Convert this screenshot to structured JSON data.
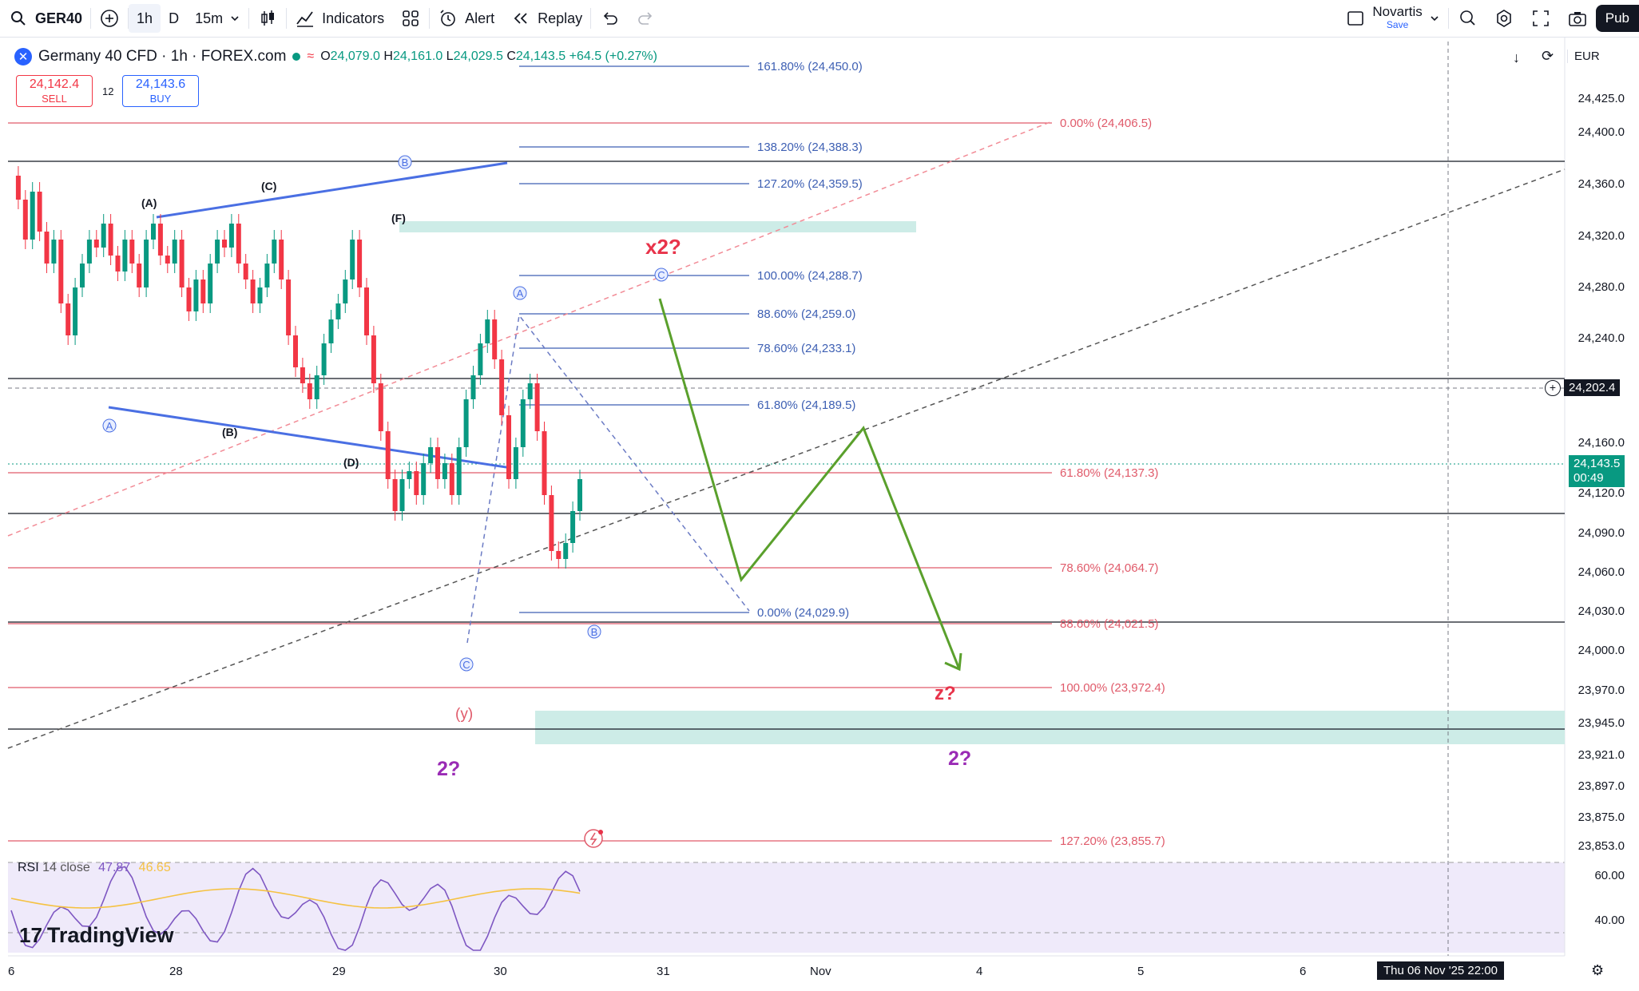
{
  "topbar": {
    "symbol": "GER40",
    "intervals": [
      "1h",
      "D",
      "15m"
    ],
    "indicators_label": "Indicators",
    "alert_label": "Alert",
    "replay_label": "Replay",
    "layout_name": "Novartis",
    "layout_status": "Save",
    "publish_label": "Pub"
  },
  "legend": {
    "title": "Germany 40 CFD · 1h · FOREX.com",
    "o_label": "O",
    "o": "24,079.0",
    "h_label": "H",
    "h": "24,161.0",
    "l_label": "L",
    "l": "24,029.5",
    "c_label": "C",
    "c": "24,143.5",
    "change": "+64.5 (+0.27%)"
  },
  "trade": {
    "sell_price": "24,142.4",
    "sell_label": "SELL",
    "spread": "12",
    "buy_price": "24,143.6",
    "buy_label": "BUY"
  },
  "currency": "EUR",
  "price_axis": [
    "24,425.0",
    "24,400.0",
    "24,360.0",
    "24,320.0",
    "24,280.0",
    "24,240.0",
    "24,160.0",
    "24,120.0",
    "24,090.0",
    "24,060.0",
    "24,030.0",
    "24,000.0",
    "23,970.0",
    "23,945.0",
    "23,921.0",
    "23,897.0",
    "23,875.0",
    "23,853.0"
  ],
  "crosshair_price": "24,202.4",
  "last_price": "24,143.5",
  "countdown": "00:49",
  "fib_upper": [
    "161.80% (24,450.0)",
    "138.20% (24,388.3)",
    "127.20% (24,359.5)",
    "100.00% (24,288.7)",
    "88.60% (24,259.0)",
    "78.60% (24,233.1)",
    "61.80% (24,189.5)",
    "0.00% (24,029.9)"
  ],
  "fib_lower": [
    "0.00% (24,406.5)",
    "61.80% (24,137.3)",
    "78.60% (24,064.7)",
    "88.60% (24,021.5)",
    "100.00% (23,972.4)",
    "127.20% (23,855.7)"
  ],
  "wave_labels": [
    "(A)",
    "(C)",
    "(F)",
    "(B)",
    "(D)",
    "(y)"
  ],
  "circle_labels": [
    "A",
    "B",
    "C"
  ],
  "annotations": {
    "x2": "x2?",
    "z": "z?",
    "two": "2?"
  },
  "rsi": {
    "label": "RSI",
    "params": "14 close",
    "value1": "47.87",
    "value2": "46.65",
    "axis": [
      "60.00",
      "40.00"
    ]
  },
  "brand": "TradingView",
  "dates": [
    "6",
    "28",
    "29",
    "30",
    "31",
    "Nov",
    "4",
    "5",
    "6"
  ],
  "crosshair_date": "Thu 06 Nov '25  22:00",
  "colors": {
    "up": "#089981",
    "down": "#f23645",
    "fib_blue": "#3d5fb3",
    "fib_red": "#e05a6a",
    "zone": "#cdece7",
    "projection": "#5aa02c",
    "wave_blue": "#4a6fe3"
  }
}
